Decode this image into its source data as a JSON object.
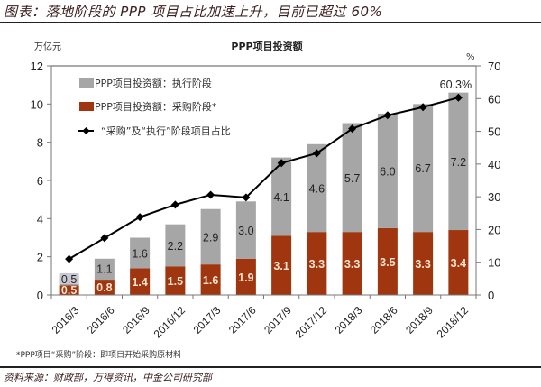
{
  "figure": {
    "title": "图表：落地阶段的 PPP 项目占比加速上升，目前已超过 60%",
    "footnote": "*PPP项目“采购”阶段：即项目开始采购原材料",
    "source": "资料来源：财政部，万得资讯，中金公司研究部"
  },
  "colors": {
    "execution": "#a6a6a6",
    "procurement": "#a0360f",
    "line": "#000000",
    "procurement_label": "#fde3cf"
  },
  "chart_data": {
    "type": "bar",
    "subtype": "stacked bar with line on secondary axis",
    "title": "PPP项目投资额",
    "ylabel_left": "万亿元",
    "ylabel_right": "%",
    "xlabel": "",
    "categories": [
      "2016/3",
      "2016/6",
      "2016/9",
      "2016/12",
      "2017/3",
      "2017/6",
      "2017/9",
      "2017/12",
      "2018/3",
      "2018/6",
      "2018/9",
      "2018/12"
    ],
    "ylim_left": [
      0,
      12
    ],
    "yticks_left": [
      0,
      2,
      4,
      6,
      8,
      10,
      12
    ],
    "ylim_right": [
      0,
      70
    ],
    "yticks_right": [
      0,
      10,
      20,
      30,
      40,
      50,
      60,
      70
    ],
    "grid": false,
    "legend_position": "top-left",
    "series": [
      {
        "name": "PPP项目投资额：采购阶段*",
        "axis": "left",
        "kind": "bar",
        "stack_order": 0,
        "values": [
          0.5,
          0.8,
          1.4,
          1.5,
          1.6,
          1.9,
          3.1,
          3.3,
          3.3,
          3.5,
          3.3,
          3.4
        ],
        "labels": [
          "0.5",
          "0.8",
          "1.4",
          "1.5",
          "1.6",
          "1.9",
          "3.1",
          "3.3",
          "3.3",
          "3.5",
          "3.3",
          "3.4"
        ]
      },
      {
        "name": "PPP项目投资额：执行阶段",
        "axis": "left",
        "kind": "bar",
        "stack_order": 1,
        "values": [
          0.5,
          1.1,
          1.6,
          2.2,
          2.9,
          3.0,
          4.1,
          4.6,
          5.7,
          6.0,
          6.7,
          7.2
        ],
        "labels": [
          "0.5",
          "1.1",
          "1.6",
          "2.2",
          "2.9",
          "3.0",
          "4.1",
          "4.6",
          "5.7",
          "6.0",
          "6.7",
          "7.2"
        ]
      },
      {
        "name": "“采购”及“执行”阶段项目占比",
        "axis": "right",
        "kind": "line",
        "values": [
          11.0,
          17.4,
          23.8,
          27.6,
          30.6,
          29.8,
          40.3,
          43.3,
          50.8,
          54.9,
          57.4,
          60.3
        ],
        "annotation": "60.3%"
      }
    ],
    "legend": [
      {
        "label": "PPP项目投资额：执行阶段",
        "swatch": "execution"
      },
      {
        "label": "PPP项目投资额：采购阶段*",
        "swatch": "procurement"
      },
      {
        "label": "“采购”及“执行”阶段项目占比",
        "swatch": "line"
      }
    ]
  }
}
